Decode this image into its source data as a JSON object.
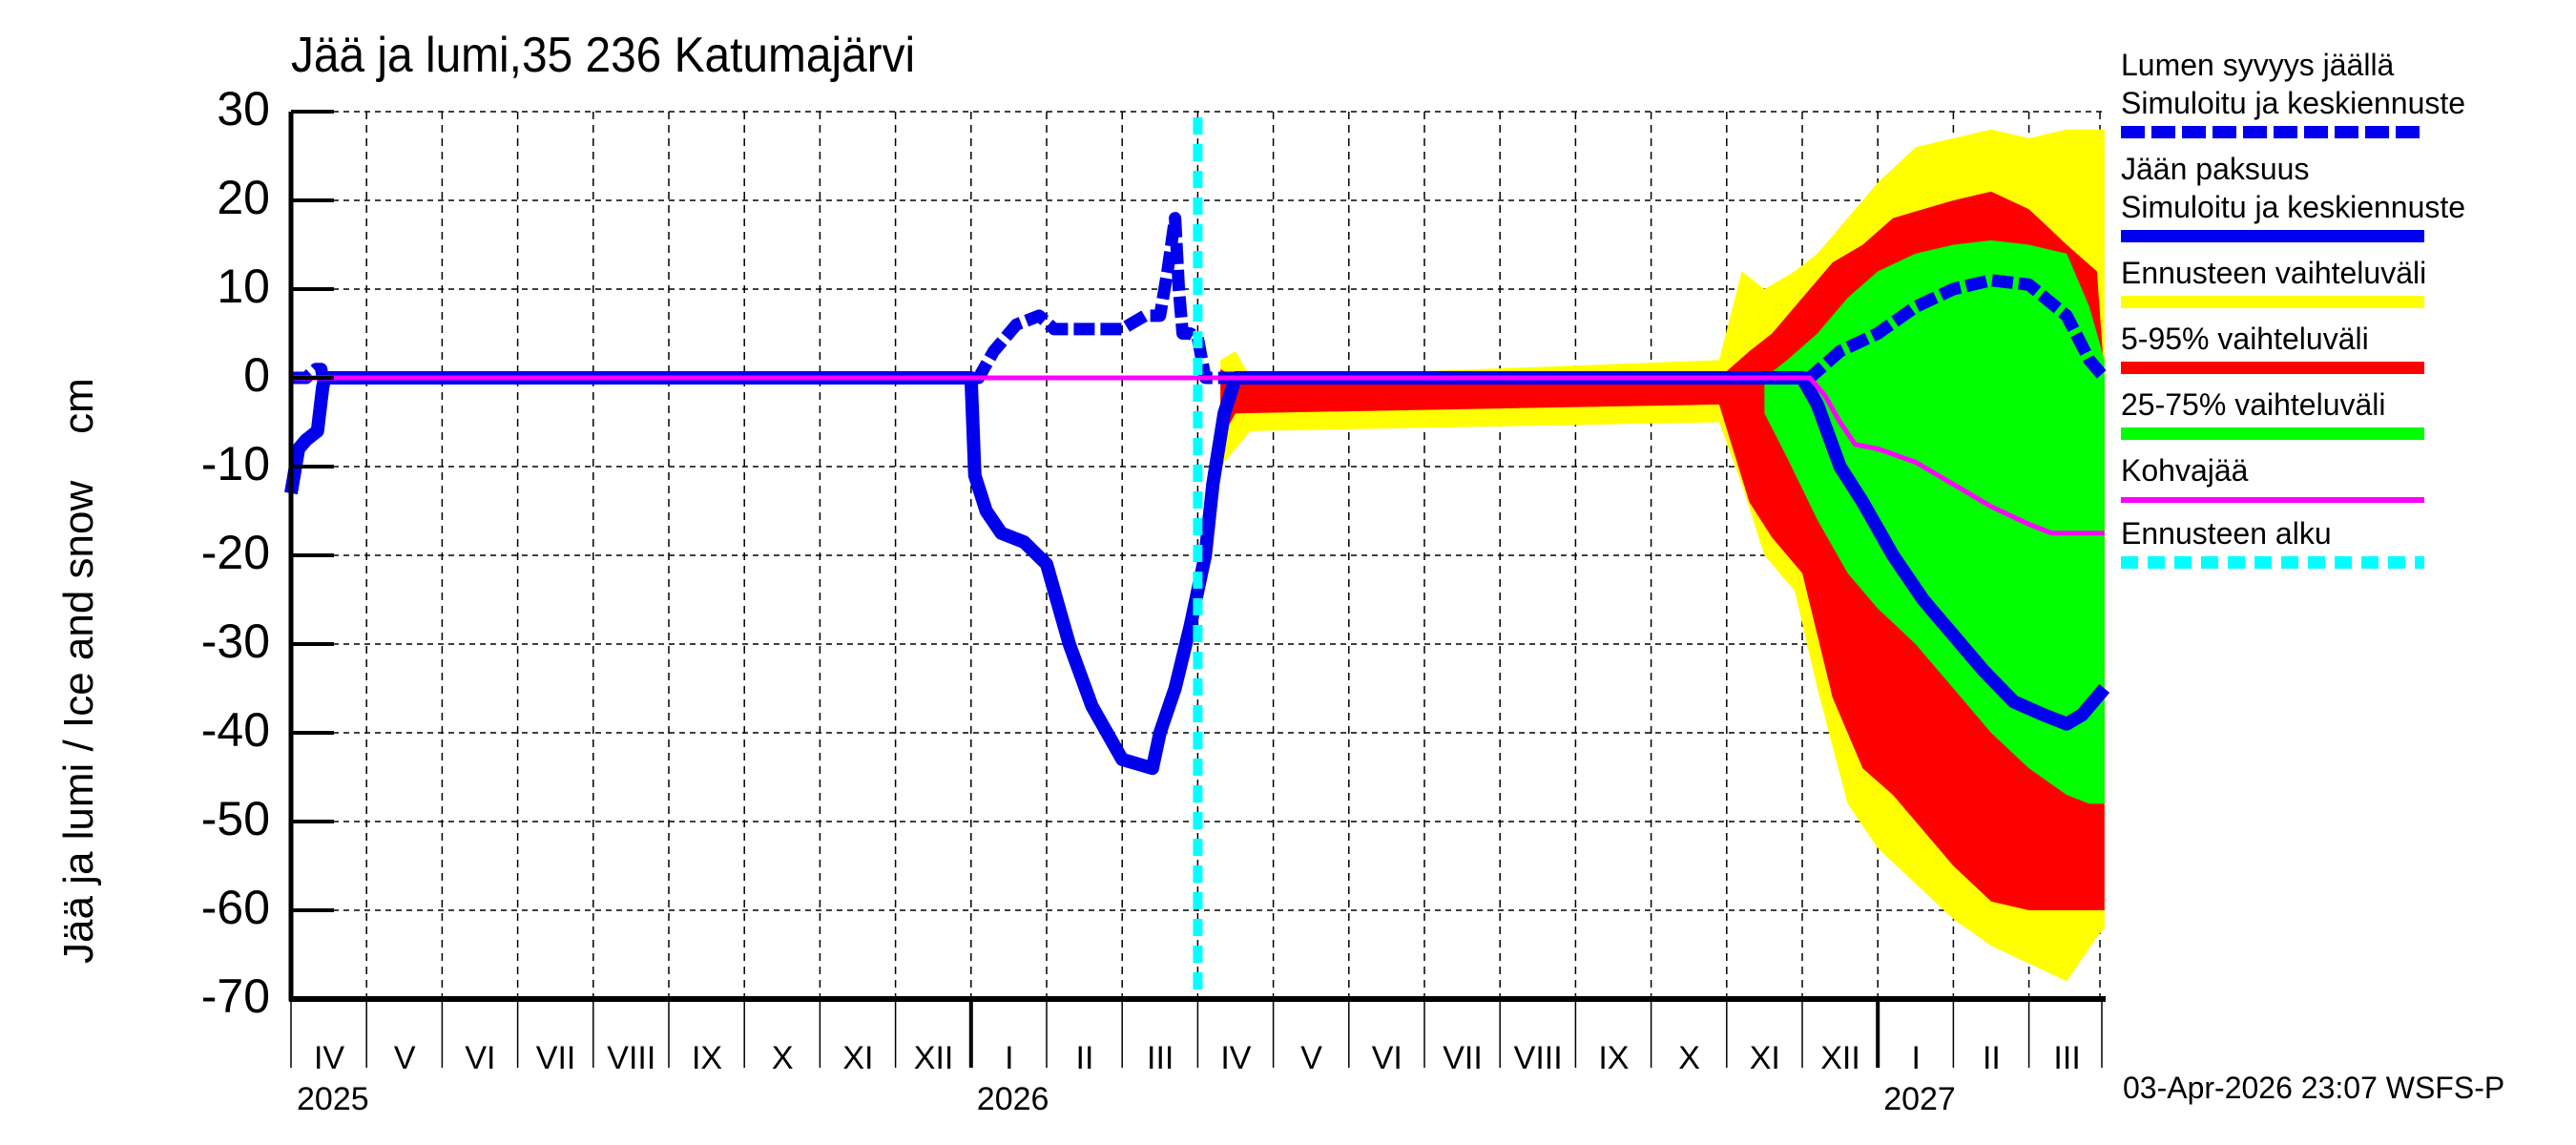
{
  "title": "Jää ja lumi,35 236 Katumajärvi",
  "y_axis_label": "Jää ja lumi / Ice and snow    cm",
  "timestamp": "03-Apr-2026 23:07 WSFS-P",
  "y_ticks": [
    "30",
    "20",
    "10",
    "0",
    "-10",
    "-20",
    "-30",
    "-40",
    "-50",
    "-60",
    "-70"
  ],
  "month_labels": [
    "IV",
    "V",
    "VI",
    "VII",
    "VIII",
    "IX",
    "X",
    "XI",
    "XII",
    "I",
    "II",
    "III",
    "IV",
    "V",
    "VI",
    "VII",
    "VIII",
    "IX",
    "X",
    "XI",
    "XII",
    "I",
    "II",
    "III"
  ],
  "year_labels": [
    {
      "label": "2025",
      "month_index": 0
    },
    {
      "label": "2026",
      "month_index": 9
    },
    {
      "label": "2027",
      "month_index": 21
    }
  ],
  "legend": [
    {
      "line1": "Lumen syvyys jäällä",
      "line2": "Simuloitu ja keskiennuste",
      "color": "#0000ee",
      "style": "dotted"
    },
    {
      "line1": "Jään paksuus",
      "line2": "Simuloitu ja keskiennuste",
      "color": "#0000ee",
      "style": "solid"
    },
    {
      "line1": "Ennusteen vaihteluväli",
      "line2": "",
      "color": "#ffff00",
      "style": "solid"
    },
    {
      "line1": "5-95% vaihteluväli",
      "line2": "",
      "color": "#ff0000",
      "style": "solid"
    },
    {
      "line1": "25-75% vaihteluväli",
      "line2": "",
      "color": "#00ff00",
      "style": "solid"
    },
    {
      "line1": "Kohvajää",
      "line2": "",
      "color": "#ff00ff",
      "style": "thin"
    },
    {
      "line1": "Ennusteen alku",
      "line2": "",
      "color": "#00ffff",
      "style": "dashed"
    }
  ],
  "chart_data": {
    "type": "area",
    "title": "Jää ja lumi,35 236 Katumajärvi",
    "xlabel": "",
    "ylabel": "Jää ja lumi / Ice and snow cm",
    "ylim": [
      -70,
      30
    ],
    "x_unit": "months since 2025-04-01",
    "xlim": [
      0,
      24
    ],
    "grid": true,
    "legend_position": "right",
    "forecast_start_x": 12.0,
    "series": [
      {
        "name": "Lumen syvyys jäällä (simuloitu ja keskiennuste)",
        "color": "#0000ee",
        "style": "dotted",
        "x": [
          0.0,
          0.2,
          0.33,
          0.4,
          0.42,
          9.0,
          9.1,
          9.3,
          9.6,
          9.9,
          10.1,
          10.5,
          11.0,
          11.3,
          11.5,
          11.6,
          11.7,
          11.75,
          11.8,
          11.9,
          12.0,
          12.1,
          12.2,
          12.35,
          12.5,
          19.0,
          19.8,
          20.1,
          20.5,
          21.0,
          21.5,
          22.0,
          22.5,
          23.0,
          23.5,
          23.8,
          24.0
        ],
        "y": [
          0,
          0,
          1,
          1,
          0,
          0,
          0,
          3,
          6,
          7,
          5.5,
          5.5,
          5.5,
          7,
          7,
          12,
          18,
          10,
          5,
          5,
          4.5,
          0,
          0,
          0,
          0,
          0,
          0,
          0,
          3,
          5,
          8,
          10,
          11,
          10.5,
          7,
          2,
          0
        ]
      },
      {
        "name": "Jään paksuus (simuloitu ja keskiennuste)",
        "color": "#0000ee",
        "style": "solid",
        "x": [
          0.0,
          0.1,
          0.2,
          0.35,
          0.42,
          0.45,
          9.0,
          9.05,
          9.2,
          9.4,
          9.7,
          10.0,
          10.3,
          10.6,
          10.8,
          11.0,
          11.2,
          11.4,
          11.5,
          11.7,
          11.9,
          12.1,
          12.2,
          12.35,
          12.5,
          19.0,
          20.0,
          20.2,
          20.5,
          20.8,
          21.2,
          21.6,
          22.0,
          22.4,
          22.8,
          23.2,
          23.5,
          23.7,
          24.0
        ],
        "y": [
          -13,
          -8,
          -7,
          -6,
          -1,
          0,
          0,
          -11,
          -15,
          -17.5,
          -18.5,
          -21,
          -30,
          -37,
          -40,
          -43,
          -43.5,
          -44,
          -40,
          -35,
          -28,
          -20,
          -12,
          -4,
          0,
          0,
          0,
          -3,
          -10,
          -14,
          -20,
          -25,
          -29,
          -33,
          -36.5,
          -38,
          -39,
          -38,
          -35
        ]
      },
      {
        "name": "Kohvajää",
        "color": "#ff00ff",
        "x": [
          0,
          20.1,
          20.3,
          20.5,
          20.7,
          21.0,
          21.5,
          22.0,
          22.5,
          23.0,
          23.3,
          24.0
        ],
        "y": [
          0,
          0,
          -2,
          -5,
          -7.5,
          -8,
          -9.5,
          -12,
          -14.5,
          -16.5,
          -17.5,
          -17.5
        ]
      },
      {
        "name": "Ennusteen vaihteluväli (max/min)",
        "color": "#ffff00",
        "x": [
          12.3,
          12.5,
          12.7,
          18.9,
          19.2,
          19.5,
          19.9,
          20.2,
          20.6,
          21.0,
          21.5,
          22.0,
          22.5,
          23.0,
          23.5,
          23.9,
          24.0
        ],
        "upper": [
          2,
          3,
          0,
          2,
          12,
          10,
          12,
          14,
          18,
          22,
          26,
          27,
          28,
          27,
          28,
          28,
          28
        ],
        "lower": [
          -10,
          -8,
          -6,
          -5,
          -12,
          -20,
          -24,
          -35,
          -48,
          -53,
          -57,
          -61,
          -64,
          -66,
          -68,
          -63,
          -62
        ]
      },
      {
        "name": "5-95% vaihteluväli",
        "color": "#ff0000",
        "x": [
          12.3,
          12.5,
          18.9,
          19.3,
          19.6,
          20.0,
          20.4,
          20.8,
          21.2,
          21.6,
          22.0,
          22.5,
          23.0,
          23.5,
          23.9,
          24.0
        ],
        "upper": [
          1,
          0,
          0,
          3,
          5,
          9,
          13,
          15,
          18,
          19,
          20,
          21,
          19,
          15,
          12,
          0
        ],
        "lower": [
          -7,
          -4,
          -3,
          -14,
          -18,
          -22,
          -36,
          -44,
          -47,
          -51,
          -55,
          -59,
          -60,
          -60,
          -60,
          -60
        ]
      },
      {
        "name": "25-75% vaihteluväli",
        "color": "#00ff00",
        "x": [
          19.5,
          19.8,
          20.2,
          20.6,
          21.0,
          21.5,
          22.0,
          22.5,
          23.0,
          23.5,
          23.8,
          24.0
        ],
        "upper": [
          0,
          2,
          5,
          9,
          12,
          14,
          15,
          15.5,
          15,
          14,
          8,
          2
        ],
        "lower": [
          -4,
          -9,
          -16,
          -22,
          -26,
          -30,
          -35,
          -40,
          -44,
          -47,
          -48,
          -48
        ]
      }
    ]
  }
}
